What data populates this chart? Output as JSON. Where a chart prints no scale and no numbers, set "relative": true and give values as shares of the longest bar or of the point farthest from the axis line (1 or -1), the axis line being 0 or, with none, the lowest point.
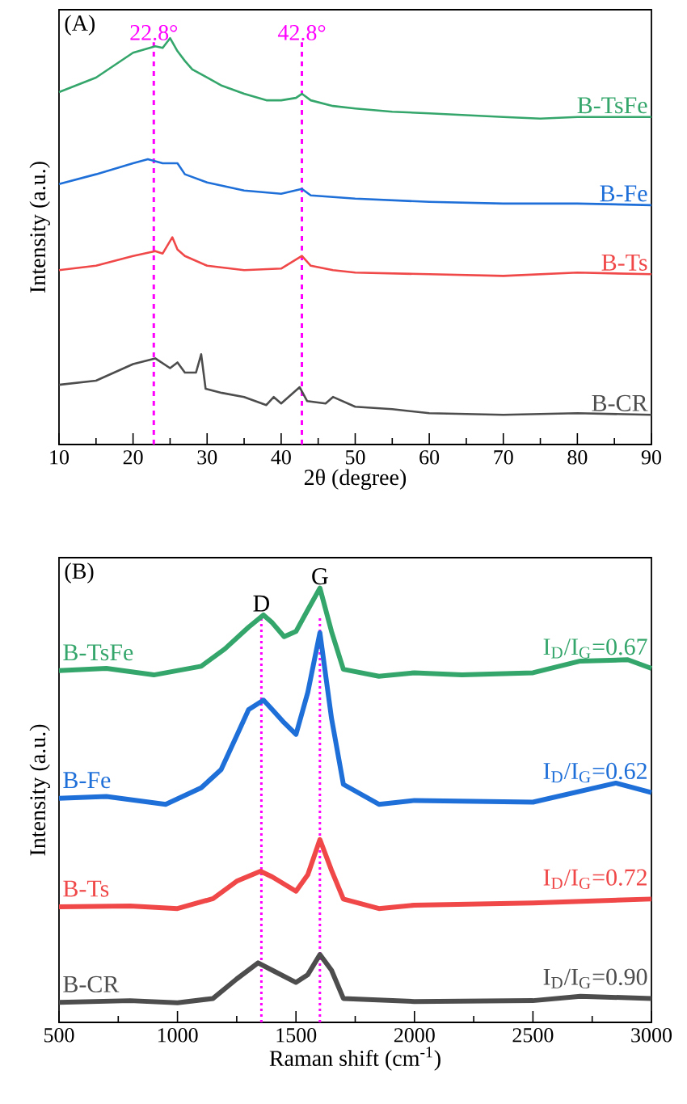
{
  "chart_data": [
    {
      "type": "line",
      "title": "(A)",
      "xlabel": "2θ (degree)",
      "ylabel": "Intensity (a.u.)",
      "relative": true,
      "xlim": [
        10,
        90
      ],
      "xticks": [
        10,
        20,
        30,
        40,
        50,
        60,
        70,
        80,
        90
      ],
      "marker": "none",
      "line_style": "solid",
      "series": [
        {
          "name": "B-TsFe",
          "color": "#35a66b",
          "x": [
            10,
            15,
            20,
            23,
            24,
            25,
            26,
            27,
            28,
            30,
            32,
            35,
            38,
            40,
            42,
            42.8,
            44,
            47,
            50,
            55,
            60,
            70,
            75,
            80,
            85,
            90
          ],
          "values": [
            0.867,
            0.903,
            0.964,
            0.98,
            0.976,
            1.0,
            0.968,
            0.944,
            0.923,
            0.903,
            0.883,
            0.863,
            0.847,
            0.847,
            0.853,
            0.863,
            0.847,
            0.833,
            0.827,
            0.819,
            0.815,
            0.806,
            0.802,
            0.806,
            0.806,
            0.806
          ]
        },
        {
          "name": "B-Fe",
          "color": "#1f6fd9",
          "x": [
            10,
            15,
            20,
            22,
            24,
            26,
            27,
            30,
            35,
            40,
            42.8,
            44,
            50,
            60,
            70,
            80,
            90
          ],
          "values": [
            0.641,
            0.665,
            0.692,
            0.702,
            0.692,
            0.692,
            0.665,
            0.645,
            0.625,
            0.617,
            0.629,
            0.613,
            0.605,
            0.597,
            0.593,
            0.593,
            0.589
          ]
        },
        {
          "name": "B-Ts",
          "color": "#f04848",
          "x": [
            10,
            15,
            20,
            23,
            24,
            25.3,
            26,
            27,
            30,
            35,
            40,
            42.8,
            44,
            47,
            50,
            60,
            70,
            80,
            90
          ],
          "values": [
            0.429,
            0.44,
            0.464,
            0.476,
            0.47,
            0.51,
            0.48,
            0.464,
            0.44,
            0.429,
            0.433,
            0.464,
            0.44,
            0.429,
            0.423,
            0.419,
            0.415,
            0.423,
            0.419
          ]
        },
        {
          "name": "B-CR",
          "color": "#4d4d4d",
          "x": [
            10,
            15,
            20,
            23,
            25,
            26,
            27,
            28.5,
            29.2,
            29.8,
            32,
            35,
            38,
            39,
            40,
            42.5,
            43.5,
            46,
            47,
            50,
            55,
            60,
            70,
            80,
            90
          ],
          "values": [
            0.147,
            0.157,
            0.198,
            0.212,
            0.188,
            0.202,
            0.177,
            0.177,
            0.222,
            0.137,
            0.127,
            0.117,
            0.097,
            0.117,
            0.101,
            0.141,
            0.107,
            0.101,
            0.117,
            0.093,
            0.087,
            0.077,
            0.073,
            0.077,
            0.073
          ]
        }
      ],
      "ref_lines": [
        {
          "axis": "x",
          "value": 22.8,
          "label": "22.8°",
          "color": "#ff00ff",
          "line_style": "dashed"
        },
        {
          "axis": "x",
          "value": 42.8,
          "label": "42.8°",
          "color": "#ff00ff",
          "line_style": "dashed"
        }
      ]
    },
    {
      "type": "line",
      "title": "(B)",
      "xlabel": "Raman shift (cm$^{-1}$)",
      "ylabel": "Intensity (a.u.)",
      "relative": true,
      "xlim": [
        500,
        3000
      ],
      "xticks": [
        500,
        1000,
        1500,
        2000,
        2500,
        3000
      ],
      "marker": "none",
      "line_style": "solid",
      "series": [
        {
          "name": "B-TsFe",
          "color": "#35a66b",
          "x": [
            500,
            700,
            900,
            1000,
            1100,
            1200,
            1300,
            1363,
            1400,
            1450,
            1500,
            1550,
            1601,
            1650,
            1700,
            1850,
            2000,
            2200,
            2500,
            2700,
            2900,
            3000
          ],
          "values": [
            0.81,
            0.815,
            0.8,
            0.81,
            0.82,
            0.86,
            0.91,
            0.938,
            0.92,
            0.888,
            0.9,
            0.95,
            1.0,
            0.9,
            0.813,
            0.797,
            0.805,
            0.8,
            0.805,
            0.832,
            0.835,
            0.815
          ]
        },
        {
          "name": "B-Fe",
          "color": "#1f6fd9",
          "x": [
            500,
            700,
            950,
            1100,
            1184,
            1250,
            1300,
            1363,
            1400,
            1450,
            1500,
            1550,
            1601,
            1650,
            1700,
            1850,
            2000,
            2500,
            2850,
            3000
          ],
          "values": [
            0.516,
            0.52,
            0.502,
            0.54,
            0.582,
            0.66,
            0.72,
            0.742,
            0.72,
            0.69,
            0.663,
            0.76,
            0.897,
            0.7,
            0.548,
            0.502,
            0.511,
            0.507,
            0.551,
            0.529
          ]
        },
        {
          "name": "B-Ts",
          "color": "#f04848",
          "x": [
            500,
            800,
            1000,
            1150,
            1250,
            1350,
            1400,
            1500,
            1550,
            1601,
            1650,
            1700,
            1850,
            2000,
            2500,
            3000
          ],
          "values": [
            0.266,
            0.268,
            0.262,
            0.285,
            0.325,
            0.348,
            0.335,
            0.302,
            0.34,
            0.421,
            0.35,
            0.284,
            0.262,
            0.27,
            0.275,
            0.284
          ]
        },
        {
          "name": "B-CR",
          "color": "#4d4d4d",
          "x": [
            500,
            800,
            1000,
            1150,
            1250,
            1340,
            1400,
            1500,
            1550,
            1601,
            1650,
            1700,
            2000,
            2500,
            2700,
            3000
          ],
          "values": [
            0.046,
            0.05,
            0.045,
            0.055,
            0.1,
            0.137,
            0.12,
            0.092,
            0.11,
            0.156,
            0.12,
            0.055,
            0.048,
            0.05,
            0.06,
            0.055
          ]
        }
      ],
      "ref_lines": [
        {
          "axis": "x",
          "value": 1354,
          "color": "#ff00ff",
          "line_style": "dotted"
        },
        {
          "axis": "x",
          "value": 1601,
          "color": "#ff00ff",
          "line_style": "dotted"
        }
      ],
      "annotations": [
        {
          "text": "D",
          "x": 1354,
          "y": 0.938
        },
        {
          "text": "G",
          "x": 1601,
          "y": 1.0
        },
        "I$_{D}$/I$_{G}$=0.67",
        "I$_{D}$/I$_{G}$=0.62",
        "I$_{D}$/I$_{G}$=0.72",
        "I$_{D}$/I$_{G}$=0.90"
      ]
    }
  ]
}
